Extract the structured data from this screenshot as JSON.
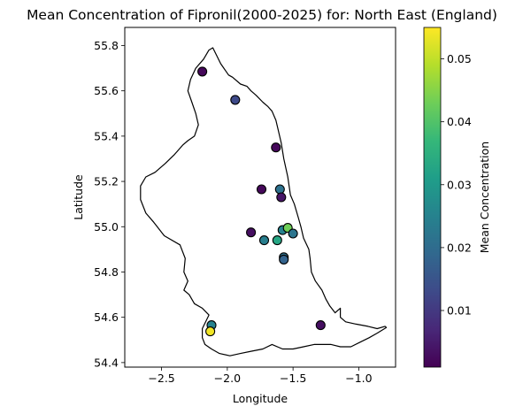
{
  "chart_data": {
    "type": "scatter",
    "title": "Mean Concentration of Fipronil(2000-2025) for: North East (England)",
    "xlabel": "Longitude",
    "ylabel": "Latitude",
    "xlim": [
      -2.78,
      -0.72
    ],
    "ylim": [
      54.38,
      55.88
    ],
    "xticks": [
      -2.5,
      -2.0,
      -1.5,
      -1.0
    ],
    "xtick_labels": [
      "−2.5",
      "−2.0",
      "−1.5",
      "−1.0"
    ],
    "yticks": [
      54.4,
      54.6,
      54.8,
      55.0,
      55.2,
      55.4,
      55.6,
      55.8
    ],
    "ytick_labels": [
      "54.4",
      "54.6",
      "54.8",
      "55.0",
      "55.2",
      "55.4",
      "55.6",
      "55.8"
    ],
    "grid": false,
    "colorbar": {
      "label": "Mean Concentration",
      "colormap": "viridis",
      "range": [
        0.001,
        0.055
      ],
      "ticks": [
        0.01,
        0.02,
        0.03,
        0.04,
        0.05
      ],
      "tick_labels": [
        "0.01",
        "0.02",
        "0.03",
        "0.04",
        "0.05"
      ]
    },
    "points": [
      {
        "lon": -2.19,
        "lat": 55.685,
        "value": 0.002
      },
      {
        "lon": -1.94,
        "lat": 55.56,
        "value": 0.013
      },
      {
        "lon": -1.63,
        "lat": 55.35,
        "value": 0.002
      },
      {
        "lon": -1.74,
        "lat": 55.165,
        "value": 0.002
      },
      {
        "lon": -1.6,
        "lat": 55.165,
        "value": 0.021
      },
      {
        "lon": -1.59,
        "lat": 55.13,
        "value": 0.004
      },
      {
        "lon": -1.82,
        "lat": 54.975,
        "value": 0.003
      },
      {
        "lon": -1.58,
        "lat": 54.985,
        "value": 0.025
      },
      {
        "lon": -1.54,
        "lat": 54.995,
        "value": 0.043
      },
      {
        "lon": -1.5,
        "lat": 54.97,
        "value": 0.022
      },
      {
        "lon": -1.72,
        "lat": 54.94,
        "value": 0.024
      },
      {
        "lon": -1.62,
        "lat": 54.94,
        "value": 0.033
      },
      {
        "lon": -1.57,
        "lat": 54.865,
        "value": 0.021
      },
      {
        "lon": -1.57,
        "lat": 54.855,
        "value": 0.018
      },
      {
        "lon": -2.12,
        "lat": 54.565,
        "value": 0.025
      },
      {
        "lon": -2.13,
        "lat": 54.538,
        "value": 0.054
      },
      {
        "lon": -1.29,
        "lat": 54.565,
        "value": 0.003
      }
    ],
    "boundary": [
      [
        -2.24,
        55.7
      ],
      [
        -2.18,
        55.74
      ],
      [
        -2.14,
        55.78
      ],
      [
        -2.11,
        55.79
      ],
      [
        -2.05,
        55.72
      ],
      [
        -1.99,
        55.67
      ],
      [
        -1.96,
        55.66
      ],
      [
        -1.9,
        55.63
      ],
      [
        -1.85,
        55.62
      ],
      [
        -1.82,
        55.6
      ],
      [
        -1.78,
        55.58
      ],
      [
        -1.73,
        55.55
      ],
      [
        -1.69,
        55.53
      ],
      [
        -1.66,
        55.51
      ],
      [
        -1.63,
        55.47
      ],
      [
        -1.61,
        55.42
      ],
      [
        -1.59,
        55.37
      ],
      [
        -1.57,
        55.3
      ],
      [
        -1.54,
        55.22
      ],
      [
        -1.52,
        55.14
      ],
      [
        -1.49,
        55.1
      ],
      [
        -1.46,
        55.04
      ],
      [
        -1.44,
        55.0
      ],
      [
        -1.42,
        54.95
      ],
      [
        -1.38,
        54.9
      ],
      [
        -1.37,
        54.86
      ],
      [
        -1.36,
        54.8
      ],
      [
        -1.33,
        54.76
      ],
      [
        -1.28,
        54.72
      ],
      [
        -1.25,
        54.68
      ],
      [
        -1.22,
        54.65
      ],
      [
        -1.18,
        54.62
      ],
      [
        -1.14,
        54.64
      ],
      [
        -1.14,
        54.6
      ],
      [
        -1.1,
        54.58
      ],
      [
        -1.02,
        54.57
      ],
      [
        -0.93,
        54.56
      ],
      [
        -0.86,
        54.55
      ],
      [
        -0.8,
        54.56
      ],
      [
        -0.79,
        54.555
      ],
      [
        -0.86,
        54.53
      ],
      [
        -0.92,
        54.51
      ],
      [
        -0.99,
        54.49
      ],
      [
        -1.06,
        54.47
      ],
      [
        -1.14,
        54.47
      ],
      [
        -1.21,
        54.48
      ],
      [
        -1.28,
        54.48
      ],
      [
        -1.34,
        54.48
      ],
      [
        -1.42,
        54.47
      ],
      [
        -1.5,
        54.46
      ],
      [
        -1.58,
        54.46
      ],
      [
        -1.66,
        54.48
      ],
      [
        -1.73,
        54.46
      ],
      [
        -1.82,
        54.45
      ],
      [
        -1.9,
        54.44
      ],
      [
        -1.98,
        54.43
      ],
      [
        -2.06,
        54.44
      ],
      [
        -2.12,
        54.46
      ],
      [
        -2.17,
        54.48
      ],
      [
        -2.19,
        54.51
      ],
      [
        -2.19,
        54.55
      ],
      [
        -2.14,
        54.61
      ],
      [
        -2.19,
        54.64
      ],
      [
        -2.25,
        54.66
      ],
      [
        -2.29,
        54.7
      ],
      [
        -2.33,
        54.72
      ],
      [
        -2.3,
        54.76
      ],
      [
        -2.33,
        54.8
      ],
      [
        -2.32,
        54.86
      ],
      [
        -2.36,
        54.92
      ],
      [
        -2.48,
        54.96
      ],
      [
        -2.56,
        55.02
      ],
      [
        -2.62,
        55.06
      ],
      [
        -2.66,
        55.12
      ],
      [
        -2.66,
        55.18
      ],
      [
        -2.62,
        55.22
      ],
      [
        -2.55,
        55.24
      ],
      [
        -2.47,
        55.28
      ],
      [
        -2.4,
        55.32
      ],
      [
        -2.34,
        55.36
      ],
      [
        -2.3,
        55.38
      ],
      [
        -2.25,
        55.4
      ],
      [
        -2.22,
        55.45
      ],
      [
        -2.24,
        55.5
      ],
      [
        -2.27,
        55.55
      ],
      [
        -2.3,
        55.6
      ],
      [
        -2.28,
        55.65
      ],
      [
        -2.24,
        55.7
      ]
    ]
  }
}
